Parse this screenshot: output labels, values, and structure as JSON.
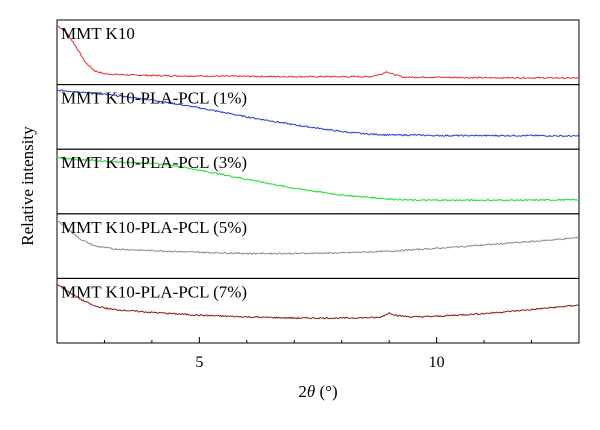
{
  "chart_data": {
    "type": "line",
    "layout": "stacked-panels",
    "xlabel_parts": {
      "main": "2",
      "italic": "θ",
      "unit": " (°)"
    },
    "ylabel": "Relative intensity",
    "xlim": [
      2,
      13
    ],
    "x_ticks_major": [
      5,
      10
    ],
    "x_ticks_minor": [
      3,
      4,
      6,
      7,
      8,
      9,
      11,
      12
    ],
    "grid": false,
    "series": [
      {
        "name": "MMT K10",
        "color": "#e8312f",
        "points": [
          [
            2.0,
            0.98
          ],
          [
            2.2,
            0.85
          ],
          [
            2.4,
            0.6
          ],
          [
            2.6,
            0.32
          ],
          [
            2.8,
            0.17
          ],
          [
            3.0,
            0.12
          ],
          [
            3.5,
            0.1
          ],
          [
            4,
            0.09
          ],
          [
            5,
            0.08
          ],
          [
            6,
            0.075
          ],
          [
            7,
            0.07
          ],
          [
            8,
            0.07
          ],
          [
            8.6,
            0.07
          ],
          [
            8.85,
            0.12
          ],
          [
            8.95,
            0.16
          ],
          [
            9.05,
            0.12
          ],
          [
            9.3,
            0.06
          ],
          [
            10,
            0.06
          ],
          [
            11,
            0.05
          ],
          [
            12,
            0.05
          ],
          [
            13,
            0.045
          ]
        ]
      },
      {
        "name": "MMT K10-PLA-PCL (1%)",
        "color": "#2a3ad8",
        "points": [
          [
            2.0,
            0.97
          ],
          [
            2.4,
            0.95
          ],
          [
            3.0,
            0.9
          ],
          [
            4,
            0.8
          ],
          [
            5,
            0.66
          ],
          [
            6,
            0.5
          ],
          [
            7,
            0.36
          ],
          [
            8,
            0.24
          ],
          [
            8.5,
            0.2
          ],
          [
            9,
            0.18
          ],
          [
            9.5,
            0.18
          ],
          [
            10,
            0.17
          ],
          [
            11,
            0.17
          ],
          [
            12,
            0.17
          ],
          [
            13,
            0.16
          ]
        ]
      },
      {
        "name": "MMT K10-PLA-PCL (3%)",
        "color": "#1be028",
        "points": [
          [
            2.0,
            0.92
          ],
          [
            2.5,
            0.88
          ],
          [
            3.0,
            0.86
          ],
          [
            3.5,
            0.84
          ],
          [
            4,
            0.82
          ],
          [
            4.5,
            0.78
          ],
          [
            5,
            0.7
          ],
          [
            6,
            0.54
          ],
          [
            7,
            0.38
          ],
          [
            8,
            0.26
          ],
          [
            9,
            0.19
          ],
          [
            9.5,
            0.17
          ],
          [
            10,
            0.17
          ],
          [
            11,
            0.17
          ],
          [
            12,
            0.17
          ],
          [
            13,
            0.18
          ]
        ]
      },
      {
        "name": "MMT K10-PLA-PCL (5%)",
        "color": "#8c8c8c",
        "points": [
          [
            2.0,
            0.95
          ],
          [
            2.2,
            0.82
          ],
          [
            2.5,
            0.62
          ],
          [
            2.8,
            0.5
          ],
          [
            3.2,
            0.45
          ],
          [
            4,
            0.42
          ],
          [
            5,
            0.39
          ],
          [
            6,
            0.37
          ],
          [
            7,
            0.37
          ],
          [
            8,
            0.38
          ],
          [
            9,
            0.41
          ],
          [
            10,
            0.46
          ],
          [
            11,
            0.52
          ],
          [
            12,
            0.58
          ],
          [
            13,
            0.65
          ]
        ]
      },
      {
        "name": "MMT K10-PLA-PCL (7%)",
        "color": "#8b1a14",
        "points": [
          [
            2.0,
            0.97
          ],
          [
            2.2,
            0.86
          ],
          [
            2.5,
            0.7
          ],
          [
            2.8,
            0.58
          ],
          [
            3.2,
            0.52
          ],
          [
            4,
            0.47
          ],
          [
            5,
            0.42
          ],
          [
            6,
            0.39
          ],
          [
            7,
            0.37
          ],
          [
            8,
            0.37
          ],
          [
            8.8,
            0.38
          ],
          [
            9.0,
            0.46
          ],
          [
            9.2,
            0.41
          ],
          [
            9.5,
            0.39
          ],
          [
            10,
            0.4
          ],
          [
            11,
            0.45
          ],
          [
            12,
            0.52
          ],
          [
            13,
            0.6
          ]
        ]
      }
    ]
  }
}
